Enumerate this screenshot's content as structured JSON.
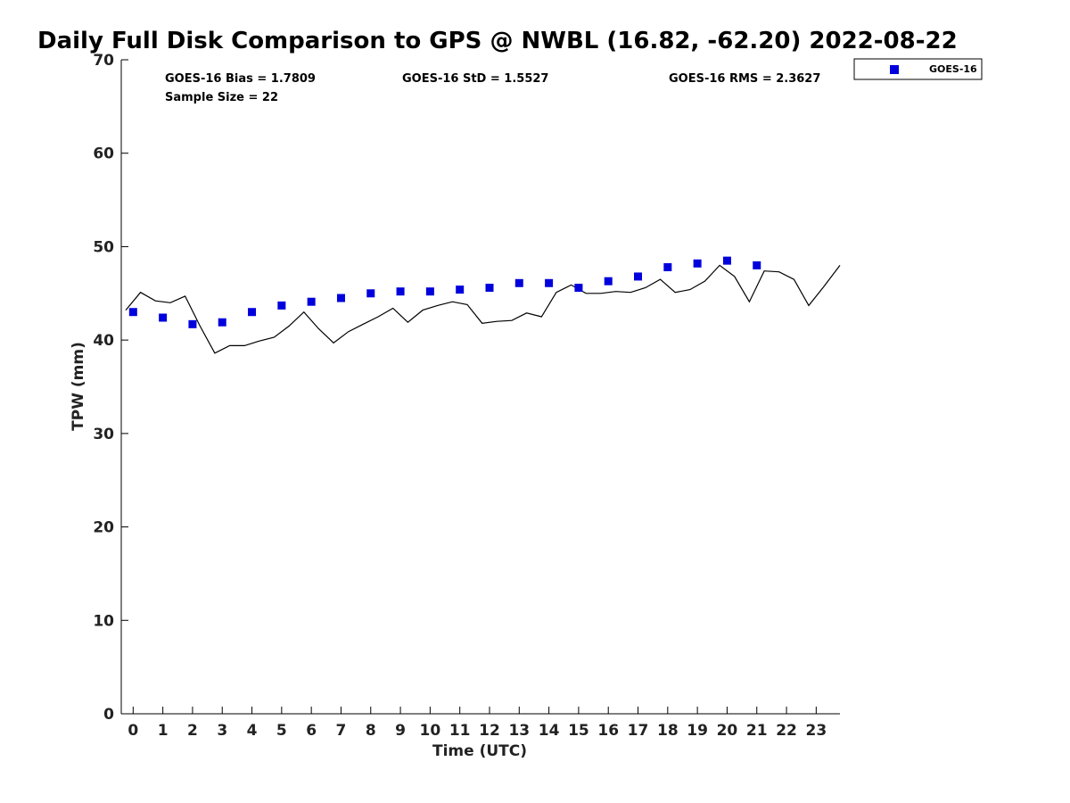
{
  "chart_data": {
    "type": "scatter",
    "title": "Daily Full Disk Comparison to GPS @ NWBL (16.82, -62.20) 2022-08-22",
    "xlabel": "Time (UTC)",
    "ylabel": "TPW (mm)",
    "xlim": [
      -0.4,
      23.8
    ],
    "ylim": [
      0,
      70
    ],
    "x_ticks": [
      "0",
      "1",
      "2",
      "3",
      "4",
      "5",
      "6",
      "7",
      "8",
      "9",
      "10",
      "11",
      "12",
      "13",
      "14",
      "15",
      "16",
      "17",
      "18",
      "19",
      "20",
      "21",
      "22",
      "23"
    ],
    "y_ticks": [
      "0",
      "10",
      "20",
      "30",
      "40",
      "50",
      "60",
      "70"
    ],
    "grid": false,
    "legend_position": "outside-top-right",
    "stats": {
      "bias": "GOES-16 Bias = 1.7809",
      "std": "GOES-16 StD = 1.5527",
      "rms": "GOES-16 RMS = 2.3627",
      "sample": "Sample Size = 22"
    },
    "series": [
      {
        "name": "GOES-16",
        "marker": "square",
        "color": "#0000dd",
        "x": [
          0,
          1,
          2,
          3,
          4,
          5,
          6,
          7,
          8,
          9,
          10,
          11,
          12,
          13,
          14,
          15,
          16,
          17,
          18,
          19,
          20,
          21
        ],
        "y": [
          43.0,
          42.4,
          41.7,
          41.9,
          43.0,
          43.7,
          44.1,
          44.5,
          45.0,
          45.2,
          45.2,
          45.4,
          45.6,
          46.1,
          46.1,
          45.6,
          46.3,
          46.8,
          47.8,
          48.2,
          48.5,
          48.0
        ]
      },
      {
        "marker": "line",
        "color": "#000000",
        "x": [
          -0.25,
          0.25,
          0.75,
          1.25,
          1.75,
          2.25,
          2.75,
          3.25,
          3.75,
          4.25,
          4.75,
          5.25,
          5.75,
          6.25,
          6.75,
          7.25,
          7.75,
          8.25,
          8.75,
          9.25,
          9.75,
          10.25,
          10.75,
          11.25,
          11.75,
          12.25,
          12.75,
          13.25,
          13.75,
          14.25,
          14.75,
          15.25,
          15.75,
          16.25,
          16.75,
          17.25,
          17.75,
          18.25,
          18.75,
          19.25,
          19.75,
          20.25,
          20.75,
          21.25,
          21.75,
          22.25,
          22.75,
          23.25,
          23.8
        ],
        "y": [
          43.2,
          45.1,
          44.2,
          44.0,
          44.7,
          41.5,
          38.6,
          39.4,
          39.4,
          39.9,
          40.3,
          41.5,
          43.0,
          41.2,
          39.7,
          40.9,
          41.7,
          42.5,
          43.4,
          41.9,
          43.2,
          43.7,
          44.1,
          43.8,
          41.8,
          42.0,
          42.1,
          42.9,
          42.5,
          45.1,
          45.9,
          45.0,
          45.0,
          45.2,
          45.1,
          45.6,
          46.5,
          45.1,
          45.4,
          46.3,
          48.0,
          46.8,
          44.1,
          47.4,
          47.3,
          46.5,
          43.7,
          45.7,
          48.0
        ]
      }
    ]
  }
}
